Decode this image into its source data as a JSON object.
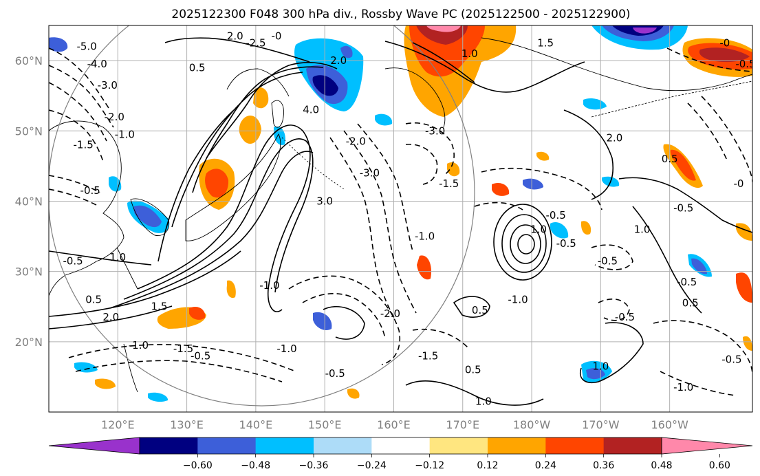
{
  "title": "2025122300 F048 300 hPa div., Rossby Wave PC (2025122500 - 2025122900)",
  "map": {
    "lon_ticks": [
      {
        "lon": 120,
        "label": "120°E"
      },
      {
        "lon": 130,
        "label": "130°E"
      },
      {
        "lon": 140,
        "label": "140°E"
      },
      {
        "lon": 150,
        "label": "150°E"
      },
      {
        "lon": 160,
        "label": "160°E"
      },
      {
        "lon": 170,
        "label": "170°E"
      },
      {
        "lon": 180,
        "label": "180°W"
      },
      {
        "lon": 190,
        "label": "170°W"
      },
      {
        "lon": 200,
        "label": "160°W"
      }
    ],
    "lat_ticks": [
      {
        "lat": 60,
        "label": "60°N"
      },
      {
        "lat": 50,
        "label": "50°N"
      },
      {
        "lat": 40,
        "label": "40°N"
      },
      {
        "lat": 30,
        "label": "30°N"
      },
      {
        "lat": 20,
        "label": "20°N"
      }
    ],
    "contour_labels": [
      {
        "text": "-5.0",
        "lon": 115.5,
        "lat": 62.0
      },
      {
        "text": "-4.0",
        "lon": 117.0,
        "lat": 59.5
      },
      {
        "text": "-3.0",
        "lon": 118.5,
        "lat": 56.5
      },
      {
        "text": "-2.0",
        "lon": 119.5,
        "lat": 52.0
      },
      {
        "text": "-1.0",
        "lon": 121.0,
        "lat": 49.5
      },
      {
        "text": "-1.5",
        "lon": 115.0,
        "lat": 48.0
      },
      {
        "text": "-0.5",
        "lon": 116.0,
        "lat": 41.5
      },
      {
        "text": "0.5",
        "lon": 131.5,
        "lat": 59.0
      },
      {
        "text": "2.0",
        "lon": 137.0,
        "lat": 63.5
      },
      {
        "text": "-2.5",
        "lon": 140.0,
        "lat": 62.5
      },
      {
        "text": "-0",
        "lon": 143.0,
        "lat": 63.5
      },
      {
        "text": "2.0",
        "lon": 152.0,
        "lat": 60.0
      },
      {
        "text": "4.0",
        "lon": 148.0,
        "lat": 53.0
      },
      {
        "text": "-2.0",
        "lon": 154.5,
        "lat": 48.5
      },
      {
        "text": "-3.0",
        "lon": 156.5,
        "lat": 44.0
      },
      {
        "text": "-3.0",
        "lon": 166.0,
        "lat": 50.0
      },
      {
        "text": "-1.5",
        "lon": 168.0,
        "lat": 42.5
      },
      {
        "text": "3.0",
        "lon": 150.0,
        "lat": 40.0
      },
      {
        "text": "-1.0",
        "lon": 164.5,
        "lat": 35.0
      },
      {
        "text": "1.0",
        "lon": 171.0,
        "lat": 61.0
      },
      {
        "text": "1.5",
        "lon": 182.0,
        "lat": 62.5
      },
      {
        "text": "-0.5",
        "lon": 183.5,
        "lat": 38.0
      },
      {
        "text": "1.0",
        "lon": 181.0,
        "lat": 36.0
      },
      {
        "text": "-0.5",
        "lon": 185.0,
        "lat": 34.0
      },
      {
        "text": "2.0",
        "lon": 192.0,
        "lat": 49.0
      },
      {
        "text": "0.5",
        "lon": 200.0,
        "lat": 46.0
      },
      {
        "text": "-0.5",
        "lon": 202.0,
        "lat": 39.0
      },
      {
        "text": "1.0",
        "lon": 196.0,
        "lat": 36.0
      },
      {
        "text": "-0.5",
        "lon": 191.0,
        "lat": 31.5
      },
      {
        "text": "-0.5",
        "lon": 202.5,
        "lat": 28.5
      },
      {
        "text": "0.5",
        "lon": 203.0,
        "lat": 25.5
      },
      {
        "text": "-0.5",
        "lon": 193.5,
        "lat": 23.5
      },
      {
        "text": "-1.0",
        "lon": 178.0,
        "lat": 26.0
      },
      {
        "text": "0.5",
        "lon": 172.5,
        "lat": 24.5
      },
      {
        "text": "-2.0",
        "lon": 159.5,
        "lat": 24.0
      },
      {
        "text": "-1.5",
        "lon": 165.0,
        "lat": 18.0
      },
      {
        "text": "0.5",
        "lon": 171.5,
        "lat": 16.0
      },
      {
        "text": "1.0",
        "lon": 173.0,
        "lat": 11.5
      },
      {
        "text": "-1.0",
        "lon": 202.0,
        "lat": 13.5
      },
      {
        "text": "1.0",
        "lon": 190.0,
        "lat": 16.5
      },
      {
        "text": "-0.5",
        "lon": 209.0,
        "lat": 17.5
      },
      {
        "text": "-0.5",
        "lon": 151.5,
        "lat": 15.5
      },
      {
        "text": "-1.0",
        "lon": 144.5,
        "lat": 19.0
      },
      {
        "text": "-0.5",
        "lon": 132.0,
        "lat": 18.0
      },
      {
        "text": "-1.5",
        "lon": 129.5,
        "lat": 19.0
      },
      {
        "text": "-1.0",
        "lon": 123.0,
        "lat": 19.5
      },
      {
        "text": "2.0",
        "lon": 119.0,
        "lat": 23.5
      },
      {
        "text": "1.5",
        "lon": 126.0,
        "lat": 25.0
      },
      {
        "text": "0.5",
        "lon": 116.5,
        "lat": 26.0
      },
      {
        "text": "-0.5",
        "lon": 113.5,
        "lat": 31.5
      },
      {
        "text": "1.0",
        "lon": 120.0,
        "lat": 32.0
      },
      {
        "text": "-1.0",
        "lon": 142.0,
        "lat": 28.0
      },
      {
        "text": "-0",
        "lon": 208.0,
        "lat": 62.5
      },
      {
        "text": "-0.5",
        "lon": 211.0,
        "lat": 59.5
      },
      {
        "text": "-0",
        "lon": 210.0,
        "lat": 42.5
      }
    ]
  },
  "colorbar": {
    "colors": [
      "#9932CC",
      "#000080",
      "#3D5FD9",
      "#00BFFF",
      "#ADDCF8",
      "#FFFFFF",
      "#FFE680",
      "#FFA500",
      "#FF4500",
      "#B22222",
      "#FF88AA"
    ],
    "tick_labels": [
      "−0.60",
      "−0.48",
      "−0.36",
      "−0.24",
      "−0.12",
      "0.12",
      "0.24",
      "0.36",
      "0.48",
      "0.60"
    ]
  }
}
